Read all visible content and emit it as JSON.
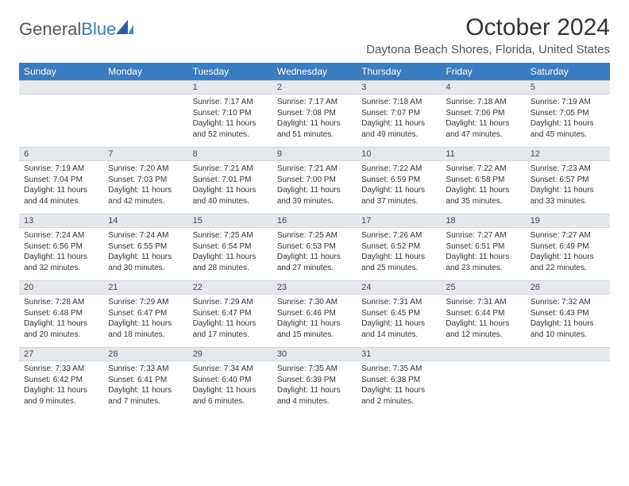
{
  "logo": {
    "text_gray": "General",
    "text_blue": "Blue"
  },
  "header": {
    "month_title": "October 2024",
    "location": "Daytona Beach Shores, Florida, United States"
  },
  "calendar": {
    "day_headers": [
      "Sunday",
      "Monday",
      "Tuesday",
      "Wednesday",
      "Thursday",
      "Friday",
      "Saturday"
    ],
    "header_bg": "#3b7bbf",
    "header_fg": "#ffffff",
    "daynum_bg": "#e6e9ec",
    "border_color": "#d0d4d9",
    "weeks": [
      [
        null,
        null,
        {
          "n": "1",
          "sunrise": "Sunrise: 7:17 AM",
          "sunset": "Sunset: 7:10 PM",
          "daylight": "Daylight: 11 hours and 52 minutes."
        },
        {
          "n": "2",
          "sunrise": "Sunrise: 7:17 AM",
          "sunset": "Sunset: 7:08 PM",
          "daylight": "Daylight: 11 hours and 51 minutes."
        },
        {
          "n": "3",
          "sunrise": "Sunrise: 7:18 AM",
          "sunset": "Sunset: 7:07 PM",
          "daylight": "Daylight: 11 hours and 49 minutes."
        },
        {
          "n": "4",
          "sunrise": "Sunrise: 7:18 AM",
          "sunset": "Sunset: 7:06 PM",
          "daylight": "Daylight: 11 hours and 47 minutes."
        },
        {
          "n": "5",
          "sunrise": "Sunrise: 7:19 AM",
          "sunset": "Sunset: 7:05 PM",
          "daylight": "Daylight: 11 hours and 45 minutes."
        }
      ],
      [
        {
          "n": "6",
          "sunrise": "Sunrise: 7:19 AM",
          "sunset": "Sunset: 7:04 PM",
          "daylight": "Daylight: 11 hours and 44 minutes."
        },
        {
          "n": "7",
          "sunrise": "Sunrise: 7:20 AM",
          "sunset": "Sunset: 7:03 PM",
          "daylight": "Daylight: 11 hours and 42 minutes."
        },
        {
          "n": "8",
          "sunrise": "Sunrise: 7:21 AM",
          "sunset": "Sunset: 7:01 PM",
          "daylight": "Daylight: 11 hours and 40 minutes."
        },
        {
          "n": "9",
          "sunrise": "Sunrise: 7:21 AM",
          "sunset": "Sunset: 7:00 PM",
          "daylight": "Daylight: 11 hours and 39 minutes."
        },
        {
          "n": "10",
          "sunrise": "Sunrise: 7:22 AM",
          "sunset": "Sunset: 6:59 PM",
          "daylight": "Daylight: 11 hours and 37 minutes."
        },
        {
          "n": "11",
          "sunrise": "Sunrise: 7:22 AM",
          "sunset": "Sunset: 6:58 PM",
          "daylight": "Daylight: 11 hours and 35 minutes."
        },
        {
          "n": "12",
          "sunrise": "Sunrise: 7:23 AM",
          "sunset": "Sunset: 6:57 PM",
          "daylight": "Daylight: 11 hours and 33 minutes."
        }
      ],
      [
        {
          "n": "13",
          "sunrise": "Sunrise: 7:24 AM",
          "sunset": "Sunset: 6:56 PM",
          "daylight": "Daylight: 11 hours and 32 minutes."
        },
        {
          "n": "14",
          "sunrise": "Sunrise: 7:24 AM",
          "sunset": "Sunset: 6:55 PM",
          "daylight": "Daylight: 11 hours and 30 minutes."
        },
        {
          "n": "15",
          "sunrise": "Sunrise: 7:25 AM",
          "sunset": "Sunset: 6:54 PM",
          "daylight": "Daylight: 11 hours and 28 minutes."
        },
        {
          "n": "16",
          "sunrise": "Sunrise: 7:25 AM",
          "sunset": "Sunset: 6:53 PM",
          "daylight": "Daylight: 11 hours and 27 minutes."
        },
        {
          "n": "17",
          "sunrise": "Sunrise: 7:26 AM",
          "sunset": "Sunset: 6:52 PM",
          "daylight": "Daylight: 11 hours and 25 minutes."
        },
        {
          "n": "18",
          "sunrise": "Sunrise: 7:27 AM",
          "sunset": "Sunset: 6:51 PM",
          "daylight": "Daylight: 11 hours and 23 minutes."
        },
        {
          "n": "19",
          "sunrise": "Sunrise: 7:27 AM",
          "sunset": "Sunset: 6:49 PM",
          "daylight": "Daylight: 11 hours and 22 minutes."
        }
      ],
      [
        {
          "n": "20",
          "sunrise": "Sunrise: 7:28 AM",
          "sunset": "Sunset: 6:48 PM",
          "daylight": "Daylight: 11 hours and 20 minutes."
        },
        {
          "n": "21",
          "sunrise": "Sunrise: 7:29 AM",
          "sunset": "Sunset: 6:47 PM",
          "daylight": "Daylight: 11 hours and 18 minutes."
        },
        {
          "n": "22",
          "sunrise": "Sunrise: 7:29 AM",
          "sunset": "Sunset: 6:47 PM",
          "daylight": "Daylight: 11 hours and 17 minutes."
        },
        {
          "n": "23",
          "sunrise": "Sunrise: 7:30 AM",
          "sunset": "Sunset: 6:46 PM",
          "daylight": "Daylight: 11 hours and 15 minutes."
        },
        {
          "n": "24",
          "sunrise": "Sunrise: 7:31 AM",
          "sunset": "Sunset: 6:45 PM",
          "daylight": "Daylight: 11 hours and 14 minutes."
        },
        {
          "n": "25",
          "sunrise": "Sunrise: 7:31 AM",
          "sunset": "Sunset: 6:44 PM",
          "daylight": "Daylight: 11 hours and 12 minutes."
        },
        {
          "n": "26",
          "sunrise": "Sunrise: 7:32 AM",
          "sunset": "Sunset: 6:43 PM",
          "daylight": "Daylight: 11 hours and 10 minutes."
        }
      ],
      [
        {
          "n": "27",
          "sunrise": "Sunrise: 7:33 AM",
          "sunset": "Sunset: 6:42 PM",
          "daylight": "Daylight: 11 hours and 9 minutes."
        },
        {
          "n": "28",
          "sunrise": "Sunrise: 7:33 AM",
          "sunset": "Sunset: 6:41 PM",
          "daylight": "Daylight: 11 hours and 7 minutes."
        },
        {
          "n": "29",
          "sunrise": "Sunrise: 7:34 AM",
          "sunset": "Sunset: 6:40 PM",
          "daylight": "Daylight: 11 hours and 6 minutes."
        },
        {
          "n": "30",
          "sunrise": "Sunrise: 7:35 AM",
          "sunset": "Sunset: 6:39 PM",
          "daylight": "Daylight: 11 hours and 4 minutes."
        },
        {
          "n": "31",
          "sunrise": "Sunrise: 7:35 AM",
          "sunset": "Sunset: 6:38 PM",
          "daylight": "Daylight: 11 hours and 2 minutes."
        },
        null,
        null
      ]
    ]
  }
}
